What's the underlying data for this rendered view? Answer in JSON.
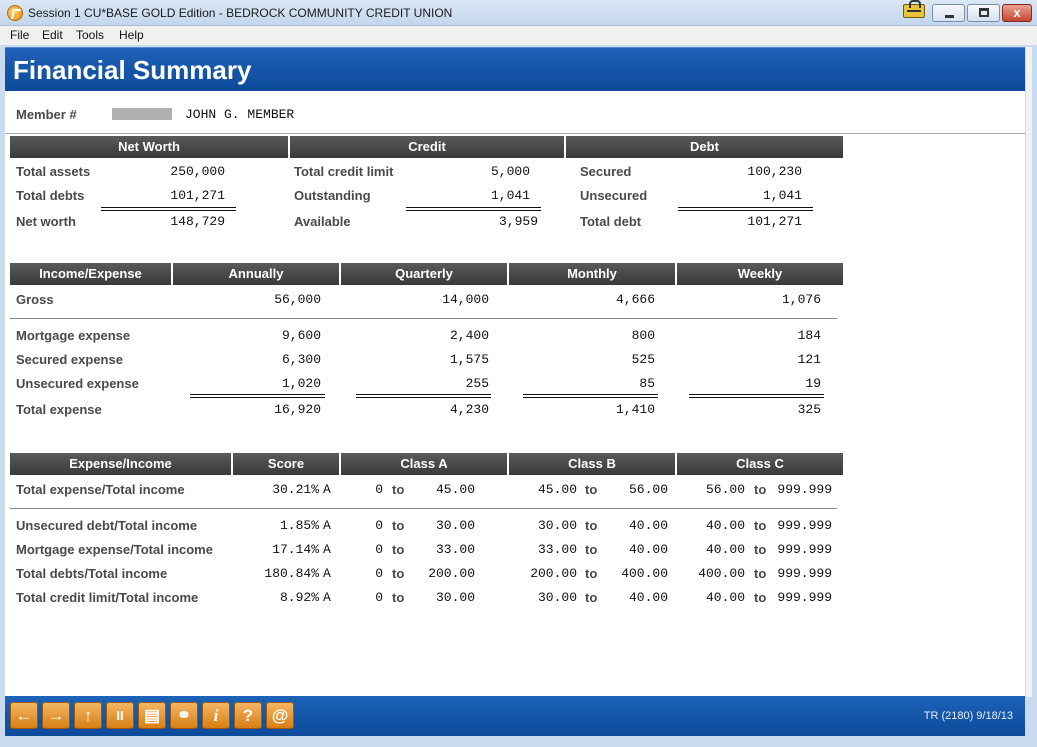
{
  "window": {
    "title": "Session 1 CU*BASE GOLD Edition - BEDROCK COMMUNITY CREDIT UNION",
    "close_glyph": "x"
  },
  "menu": [
    "File",
    "Edit",
    "Tools",
    "Help"
  ],
  "page_title": "Financial Summary",
  "member": {
    "label": "Member #",
    "name": "JOHN G. MEMBER"
  },
  "net_worth": {
    "header": "Net Worth",
    "rows": [
      {
        "label": "Total assets",
        "value": "250,000"
      },
      {
        "label": "Total debts",
        "value": "101,271"
      },
      {
        "label": "Net worth",
        "value": "148,729"
      }
    ]
  },
  "credit": {
    "header": "Credit",
    "rows": [
      {
        "label": "Total credit limit",
        "value": "5,000"
      },
      {
        "label": "Outstanding",
        "value": "1,041"
      },
      {
        "label": "Available",
        "value": "3,959"
      }
    ]
  },
  "debt": {
    "header": "Debt",
    "rows": [
      {
        "label": "Secured",
        "value": "100,230"
      },
      {
        "label": "Unsecured",
        "value": "1,041"
      },
      {
        "label": "Total debt",
        "value": "101,271"
      }
    ]
  },
  "income_expense": {
    "headers": [
      "Income/Expense",
      "Annually",
      "Quarterly",
      "Monthly",
      "Weekly"
    ],
    "gross": {
      "label": "Gross",
      "values": [
        "56,000",
        "14,000",
        "4,666",
        "1,076"
      ]
    },
    "rows": [
      {
        "label": "Mortgage expense",
        "values": [
          "9,600",
          "2,400",
          "800",
          "184"
        ]
      },
      {
        "label": "Secured expense",
        "values": [
          "6,300",
          "1,575",
          "525",
          "121"
        ]
      },
      {
        "label": "Unsecured expense",
        "values": [
          "1,020",
          "255",
          "85",
          "19"
        ]
      }
    ],
    "total": {
      "label": "Total expense",
      "values": [
        "16,920",
        "4,230",
        "1,410",
        "325"
      ]
    }
  },
  "ratios": {
    "headers": [
      "Expense/Income",
      "Score",
      "Class A",
      "Class B",
      "Class C"
    ],
    "to_label": "to",
    "rows": [
      {
        "label": "Total expense/Total income",
        "score": "30.21%",
        "grade": "A",
        "a": [
          "0",
          "45.00"
        ],
        "b": [
          "45.00",
          "56.00"
        ],
        "c": [
          "56.00",
          "999.999"
        ]
      },
      {
        "label": "Unsecured debt/Total income",
        "score": "1.85%",
        "grade": "A",
        "a": [
          "0",
          "30.00"
        ],
        "b": [
          "30.00",
          "40.00"
        ],
        "c": [
          "40.00",
          "999.999"
        ]
      },
      {
        "label": "Mortgage expense/Total income",
        "score": "17.14%",
        "grade": "A",
        "a": [
          "0",
          "33.00"
        ],
        "b": [
          "33.00",
          "40.00"
        ],
        "c": [
          "40.00",
          "999.999"
        ]
      },
      {
        "label": "Total debts/Total income",
        "score": "180.84%",
        "grade": "A",
        "a": [
          "0",
          "200.00"
        ],
        "b": [
          "200.00",
          "400.00"
        ],
        "c": [
          "400.00",
          "999.999"
        ]
      },
      {
        "label": "Total credit limit/Total income",
        "score": "8.92%",
        "grade": "A",
        "a": [
          "0",
          "30.00"
        ],
        "b": [
          "30.00",
          "40.00"
        ],
        "c": [
          "40.00",
          "999.999"
        ]
      }
    ]
  },
  "toolbar": {
    "buttons": [
      {
        "name": "back",
        "glyph": "←"
      },
      {
        "name": "forward",
        "glyph": "→"
      },
      {
        "name": "up",
        "glyph": "↑"
      },
      {
        "name": "pause",
        "glyph": "II"
      },
      {
        "name": "print",
        "glyph": "▤"
      },
      {
        "name": "link",
        "glyph": "⚭"
      },
      {
        "name": "info",
        "glyph": "i"
      },
      {
        "name": "help",
        "glyph": "?"
      },
      {
        "name": "email",
        "glyph": "@"
      }
    ],
    "status": "TR (2180) 9/18/13"
  },
  "colors": {
    "header_blue": "#0d4a9a",
    "section_header": "#3a3a3a",
    "toolbar_orange": "#d97e14"
  }
}
